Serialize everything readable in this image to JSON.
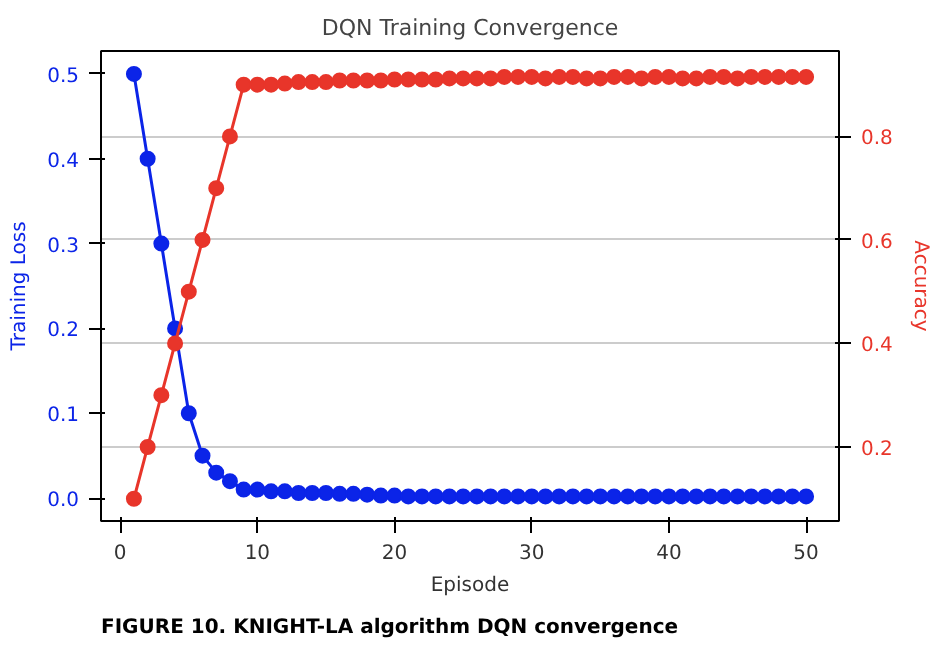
{
  "chart_data": {
    "type": "line",
    "title": "DQN Training Convergence",
    "xlabel": "Episode",
    "ylabel": "Training Loss",
    "y2label": "Accuracy",
    "x": [
      1,
      2,
      3,
      4,
      5,
      6,
      7,
      8,
      9,
      10,
      11,
      12,
      13,
      14,
      15,
      16,
      17,
      18,
      19,
      20,
      21,
      22,
      23,
      24,
      25,
      26,
      27,
      28,
      29,
      30,
      31,
      32,
      33,
      34,
      35,
      36,
      37,
      38,
      39,
      40,
      41,
      42,
      43,
      44,
      45,
      46,
      47,
      48,
      49,
      50
    ],
    "series": [
      {
        "color": "#0b24e8",
        "values": [
          0.5,
          0.4,
          0.3,
          0.2,
          0.1,
          0.05,
          0.03,
          0.02,
          0.01,
          0.01,
          0.008,
          0.008,
          0.006,
          0.006,
          0.006,
          0.005,
          0.005,
          0.004,
          0.003,
          0.003,
          0.002,
          0.002,
          0.002,
          0.002,
          0.002,
          0.002,
          0.002,
          0.002,
          0.002,
          0.002,
          0.002,
          0.002,
          0.002,
          0.002,
          0.002,
          0.002,
          0.002,
          0.002,
          0.002,
          0.002,
          0.002,
          0.002,
          0.002,
          0.002,
          0.002,
          0.002,
          0.002,
          0.002,
          0.002,
          0.002
        ]
      },
      {
        "color": "#e8352a",
        "axis": "y2",
        "values": [
          0.1,
          0.2,
          0.3,
          0.4,
          0.5,
          0.6,
          0.7,
          0.8,
          0.9,
          0.9,
          0.9,
          0.902,
          0.905,
          0.905,
          0.905,
          0.908,
          0.908,
          0.908,
          0.908,
          0.91,
          0.91,
          0.91,
          0.91,
          0.912,
          0.912,
          0.912,
          0.912,
          0.915,
          0.915,
          0.915,
          0.912,
          0.915,
          0.915,
          0.912,
          0.912,
          0.915,
          0.915,
          0.912,
          0.915,
          0.915,
          0.912,
          0.912,
          0.915,
          0.915,
          0.912,
          0.915,
          0.915,
          0.915,
          0.915,
          0.915
        ]
      }
    ],
    "xlim": [
      -1.4,
      52.4
    ],
    "xticks": [
      0,
      10,
      20,
      30,
      40,
      50
    ],
    "ylim": [
      -0.027,
      0.527
    ],
    "yticks": [
      {
        "value": 0,
        "label": "0.0"
      },
      0.1,
      0.2,
      0.3,
      0.4,
      0.5
    ],
    "y2lim": [
      0.057,
      0.965
    ],
    "y2ticks": [
      0.2,
      0.4,
      0.6,
      0.8
    ],
    "grid": "y2",
    "marker": "circle",
    "line_style": "solid",
    "annotations": [
      "FIGURE 10. KNIGHT-LA algorithm DQN convergence"
    ]
  }
}
